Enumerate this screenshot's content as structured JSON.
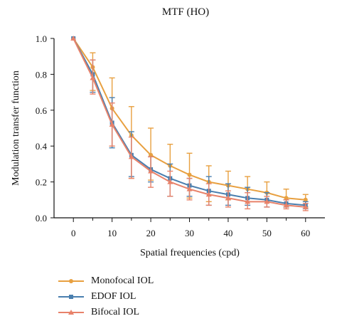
{
  "chart_data": {
    "type": "line",
    "title": "MTF (HO)",
    "xlabel": "Spatial frequencies (cpd)",
    "ylabel": "Modulation transfer function",
    "xlim": [
      -5,
      65
    ],
    "ylim": [
      0,
      1.0
    ],
    "xticks": [
      0,
      10,
      20,
      30,
      40,
      50,
      60
    ],
    "xtick_labels": [
      "0",
      "10",
      "20",
      "30",
      "40",
      "50",
      "60"
    ],
    "yticks": [
      0,
      0.2,
      0.4,
      0.6,
      0.8,
      1.0
    ],
    "ytick_labels": [
      "0.0",
      "0.2",
      "0.4",
      "0.6",
      "0.8",
      "1.0"
    ],
    "x": [
      0,
      5,
      10,
      15,
      20,
      25,
      30,
      35,
      40,
      45,
      50,
      55,
      60
    ],
    "grid": false,
    "legend_position": "bottom-left",
    "series": [
      {
        "name": "Monofocal IOL",
        "color": "#e8a040",
        "marker": "circle",
        "values": [
          1.0,
          0.84,
          0.61,
          0.46,
          0.35,
          0.29,
          0.24,
          0.2,
          0.18,
          0.16,
          0.14,
          0.11,
          0.1
        ],
        "err_upper": [
          0,
          0.08,
          0.17,
          0.16,
          0.15,
          0.12,
          0.12,
          0.09,
          0.08,
          0.07,
          0.06,
          0.05,
          0.03
        ],
        "err_lower": [
          0,
          0.13,
          0.21,
          0.24,
          0.14,
          0.17,
          0.13,
          0.11,
          0.08,
          0.07,
          0.05,
          0.05,
          0.04
        ]
      },
      {
        "name": "EDOF IOL",
        "color": "#4a7faf",
        "marker": "square",
        "values": [
          1.0,
          0.8,
          0.53,
          0.35,
          0.27,
          0.22,
          0.18,
          0.15,
          0.13,
          0.11,
          0.1,
          0.08,
          0.07
        ],
        "err_upper": [
          0,
          0.08,
          0.14,
          0.13,
          0.07,
          0.08,
          0.04,
          0.08,
          0.06,
          0.06,
          0.04,
          0.02,
          0.02
        ],
        "err_lower": [
          0,
          0.1,
          0.14,
          0.12,
          0.07,
          0.1,
          0.06,
          0.08,
          0.06,
          0.04,
          0.04,
          0.02,
          0.02
        ]
      },
      {
        "name": "Bifocal IOL",
        "color": "#e8826a",
        "marker": "triangle",
        "values": [
          1.0,
          0.78,
          0.52,
          0.34,
          0.26,
          0.2,
          0.16,
          0.13,
          0.11,
          0.09,
          0.09,
          0.07,
          0.06
        ],
        "err_upper": [
          0,
          0.1,
          0.12,
          0.11,
          0.08,
          0.06,
          0.06,
          0.06,
          0.04,
          0.05,
          0.03,
          0.03,
          0.02
        ],
        "err_lower": [
          0,
          0.09,
          0.12,
          0.12,
          0.09,
          0.08,
          0.06,
          0.06,
          0.05,
          0.04,
          0.03,
          0.02,
          0.02
        ]
      }
    ]
  }
}
